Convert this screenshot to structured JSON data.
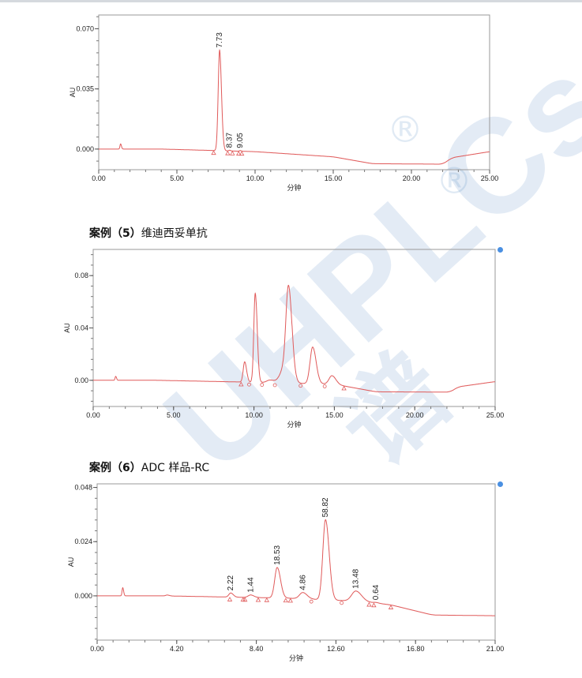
{
  "headings": {
    "case5_prefix": "案例（5）",
    "case5_name": "维迪西妥单抗",
    "case6_prefix": "案例（6）",
    "case6_name": "ADC 样品-RC"
  },
  "watermark": {
    "text": "UHPLCs",
    "sub": "谱",
    "reg": "®",
    "colors": [
      "#2d6fb5",
      "#8dc63f"
    ]
  },
  "trace_color": "#e05a5a",
  "chart_data": [
    {
      "type": "line",
      "xlabel": "分钟",
      "ylabel": "AU",
      "xlim": [
        0,
        25
      ],
      "ylim": [
        -0.012,
        0.078
      ],
      "xticks": [
        "0.00",
        "5.00",
        "10.00",
        "15.00",
        "20.00",
        "25.00"
      ],
      "xtick_values": [
        0,
        5,
        10,
        15,
        20,
        25
      ],
      "yticks": [
        "0.000",
        "0.035",
        "0.070"
      ],
      "ytick_values": [
        0,
        0.035,
        0.07
      ],
      "baseline": [
        [
          0,
          0
        ],
        [
          4,
          0
        ],
        [
          10,
          -0.0015
        ],
        [
          15,
          -0.0045
        ],
        [
          17.5,
          -0.0085
        ],
        [
          22,
          -0.0088
        ],
        [
          22.6,
          -0.005
        ],
        [
          25,
          -0.0015
        ]
      ],
      "peaks": [
        {
          "t": 1.4,
          "h": 0.003,
          "w": 0.04
        },
        {
          "t": 7.73,
          "h": 0.0585,
          "w": 0.09,
          "label": "7.73"
        },
        {
          "t": 8.37,
          "h": 0.0004,
          "w": 0.05,
          "label": "8.37"
        },
        {
          "t": 9.05,
          "h": 0.0004,
          "w": 0.05,
          "label": "9.05"
        }
      ],
      "markers": [
        {
          "t": 7.35,
          "s": "tri"
        },
        {
          "t": 8.25,
          "s": "tri"
        },
        {
          "t": 8.55,
          "s": "tri"
        },
        {
          "t": 8.95,
          "s": "tri"
        },
        {
          "t": 9.15,
          "s": "tri"
        }
      ]
    },
    {
      "type": "line",
      "xlabel": "分钟",
      "ylabel": "AU",
      "xlim": [
        0,
        25
      ],
      "ylim": [
        -0.02,
        0.1
      ],
      "xticks": [
        "0.00",
        "5.00",
        "10.00",
        "15.00",
        "20.00",
        "25.00"
      ],
      "xtick_values": [
        0,
        5,
        10,
        15,
        20,
        25
      ],
      "yticks": [
        "0.00",
        "0.04",
        "0.08"
      ],
      "ytick_values": [
        0,
        0.04,
        0.08
      ],
      "baseline": [
        [
          0,
          0
        ],
        [
          4,
          0
        ],
        [
          10,
          -0.0015
        ],
        [
          15,
          -0.003
        ],
        [
          17.6,
          -0.0088
        ],
        [
          22.2,
          -0.009
        ],
        [
          22.7,
          -0.005
        ],
        [
          25,
          -0.001
        ]
      ],
      "peaks": [
        {
          "t": 1.4,
          "h": 0.003,
          "w": 0.04
        },
        {
          "t": 9.42,
          "h": 0.0155,
          "w": 0.09
        },
        {
          "t": 10.08,
          "h": 0.068,
          "w": 0.09
        },
        {
          "t": 11.0,
          "h": 0.002,
          "w": 0.2
        },
        {
          "t": 11.85,
          "h": 0.01,
          "w": 0.25
        },
        {
          "t": 12.15,
          "h": 0.068,
          "w": 0.16
        },
        {
          "t": 13.65,
          "h": 0.028,
          "w": 0.16
        },
        {
          "t": 14.85,
          "h": 0.0065,
          "w": 0.18
        }
      ],
      "markers": [
        {
          "t": 9.2,
          "s": "tri"
        },
        {
          "t": 9.7,
          "s": "circ"
        },
        {
          "t": 10.5,
          "s": "circ"
        },
        {
          "t": 11.3,
          "s": "circ"
        },
        {
          "t": 12.9,
          "s": "circ"
        },
        {
          "t": 14.4,
          "s": "circ"
        },
        {
          "t": 15.6,
          "s": "tri"
        }
      ]
    },
    {
      "type": "line",
      "xlabel": "分钟",
      "ylabel": "AU",
      "xlim": [
        0,
        21
      ],
      "ylim": [
        -0.0196,
        0.0496
      ],
      "xticks": [
        "0.00",
        "4.20",
        "8.40",
        "12.60",
        "16.80",
        "21.00"
      ],
      "xtick_values": [
        0,
        4.2,
        8.4,
        12.6,
        16.8,
        21
      ],
      "yticks": [
        "0.000",
        "0.024",
        "0.048"
      ],
      "ytick_values": [
        0,
        0.024,
        0.048
      ],
      "baseline": [
        [
          0,
          0
        ],
        [
          3.5,
          0
        ],
        [
          10,
          -0.001
        ],
        [
          14,
          -0.0025
        ],
        [
          15.5,
          -0.004
        ],
        [
          17.7,
          -0.0085
        ],
        [
          21,
          -0.0088
        ]
      ],
      "peaks": [
        {
          "t": 1.35,
          "h": 0.0036,
          "w": 0.035
        },
        {
          "t": 3.7,
          "h": 0.0004,
          "w": 0.08
        },
        {
          "t": 7.05,
          "h": 0.0018,
          "w": 0.1,
          "label": "2.22"
        },
        {
          "t": 8.1,
          "h": 0.0011,
          "w": 0.13,
          "label": "1.44"
        },
        {
          "t": 9.5,
          "h": 0.0135,
          "w": 0.13,
          "label": "18.53"
        },
        {
          "t": 10.85,
          "h": 0.0028,
          "w": 0.17,
          "label": "4.86"
        },
        {
          "t": 12.05,
          "h": 0.0355,
          "w": 0.14,
          "label": "58.82"
        },
        {
          "t": 13.65,
          "h": 0.0045,
          "w": 0.22,
          "label": "13.48"
        },
        {
          "t": 14.7,
          "h": 0.0003,
          "w": 0.12,
          "label": "0.64"
        }
      ],
      "markers": [
        {
          "t": 7.0,
          "s": "tri"
        },
        {
          "t": 7.7,
          "s": "tri"
        },
        {
          "t": 7.8,
          "s": "tri"
        },
        {
          "t": 8.5,
          "s": "tri"
        },
        {
          "t": 8.95,
          "s": "tri"
        },
        {
          "t": 9.95,
          "s": "tri"
        },
        {
          "t": 10.2,
          "s": "tri"
        },
        {
          "t": 11.3,
          "s": "circ"
        },
        {
          "t": 12.9,
          "s": "circ"
        },
        {
          "t": 14.35,
          "s": "tri"
        },
        {
          "t": 14.6,
          "s": "tri"
        },
        {
          "t": 15.5,
          "s": "tri"
        }
      ]
    }
  ]
}
